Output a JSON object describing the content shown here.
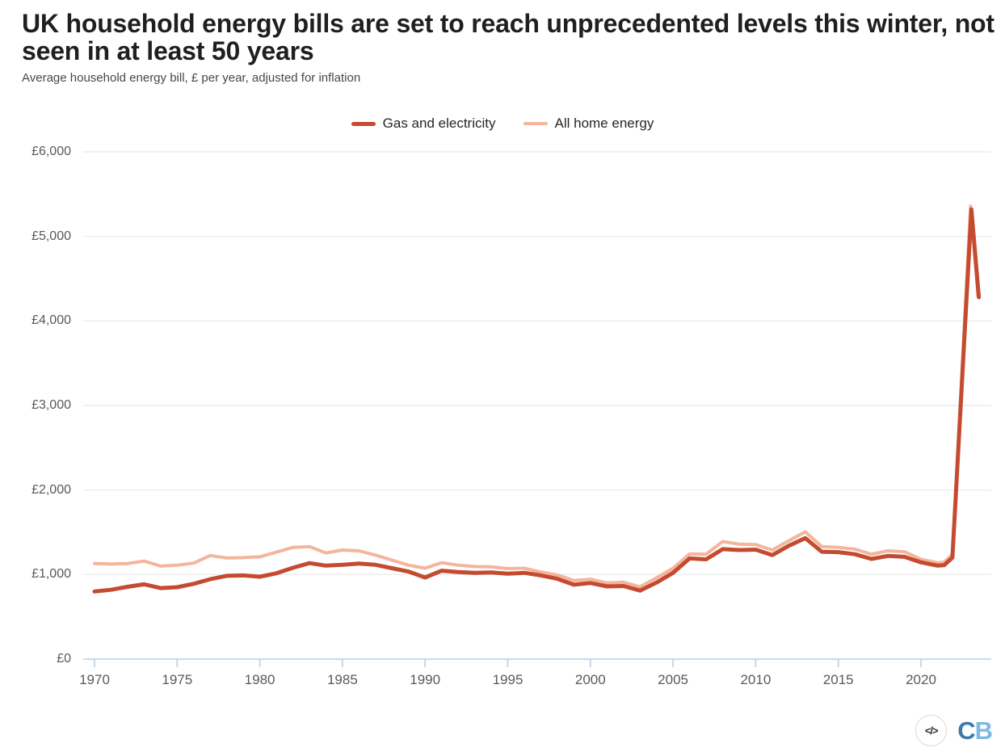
{
  "header": {
    "title": "UK household energy bills are set to reach unprecedented levels this winter, not seen in at least 50 years",
    "subtitle": "Average household energy bill, £ per year, adjusted for inflation"
  },
  "legend": [
    {
      "label": "Gas and electricity",
      "color": "#c44b30"
    },
    {
      "label": "All home energy",
      "color": "#f4b59c"
    }
  ],
  "chart_data": {
    "type": "line",
    "title": "UK household energy bills are set to reach unprecedented levels this winter, not seen in at least 50 years",
    "subtitle": "Average household energy bill, £ per year, adjusted for inflation",
    "xlabel": "",
    "ylabel": "Average household energy bill, £ per year, adjusted for inflation",
    "xlim": [
      1969.3,
      2024.3
    ],
    "ylim": [
      0,
      6000
    ],
    "grid": "horizontal",
    "legend_position": "top-center",
    "grid_color": "#ececec",
    "axis_color": "#b9cfe4",
    "y_ticks": [
      {
        "label": "£0",
        "value": 0
      },
      {
        "label": "£1,000",
        "value": 1000
      },
      {
        "label": "£2,000",
        "value": 2000
      },
      {
        "label": "£3,000",
        "value": 3000
      },
      {
        "label": "£4,000",
        "value": 4000
      },
      {
        "label": "£5,000",
        "value": 5000
      },
      {
        "label": "£6,000",
        "value": 6000
      }
    ],
    "x_ticks": [
      {
        "label": "1970",
        "value": 1970
      },
      {
        "label": "1975",
        "value": 1975
      },
      {
        "label": "1980",
        "value": 1980
      },
      {
        "label": "1985",
        "value": 1985
      },
      {
        "label": "1990",
        "value": 1990
      },
      {
        "label": "1995",
        "value": 1995
      },
      {
        "label": "2000",
        "value": 2000
      },
      {
        "label": "2005",
        "value": 2005
      },
      {
        "label": "2010",
        "value": 2010
      },
      {
        "label": "2015",
        "value": 2015
      },
      {
        "label": "2020",
        "value": 2020
      }
    ],
    "series": [
      {
        "name": "All home energy",
        "color": "#f4b59c",
        "stroke_width": 4,
        "points": [
          [
            1970,
            1130
          ],
          [
            1971,
            1125
          ],
          [
            1972,
            1130
          ],
          [
            1973,
            1160
          ],
          [
            1974,
            1100
          ],
          [
            1975,
            1110
          ],
          [
            1976,
            1135
          ],
          [
            1977,
            1225
          ],
          [
            1978,
            1195
          ],
          [
            1979,
            1200
          ],
          [
            1980,
            1210
          ],
          [
            1981,
            1265
          ],
          [
            1982,
            1320
          ],
          [
            1983,
            1330
          ],
          [
            1984,
            1255
          ],
          [
            1985,
            1290
          ],
          [
            1986,
            1280
          ],
          [
            1987,
            1230
          ],
          [
            1988,
            1170
          ],
          [
            1989,
            1110
          ],
          [
            1990,
            1075
          ],
          [
            1991,
            1140
          ],
          [
            1992,
            1110
          ],
          [
            1993,
            1095
          ],
          [
            1994,
            1090
          ],
          [
            1995,
            1070
          ],
          [
            1996,
            1075
          ],
          [
            1997,
            1030
          ],
          [
            1998,
            995
          ],
          [
            1999,
            930
          ],
          [
            2000,
            945
          ],
          [
            2001,
            900
          ],
          [
            2002,
            910
          ],
          [
            2003,
            855
          ],
          [
            2004,
            960
          ],
          [
            2005,
            1075
          ],
          [
            2006,
            1245
          ],
          [
            2007,
            1240
          ],
          [
            2008,
            1390
          ],
          [
            2009,
            1360
          ],
          [
            2010,
            1355
          ],
          [
            2011,
            1290
          ],
          [
            2012,
            1400
          ],
          [
            2013,
            1505
          ],
          [
            2014,
            1330
          ],
          [
            2015,
            1320
          ],
          [
            2016,
            1300
          ],
          [
            2017,
            1240
          ],
          [
            2018,
            1280
          ],
          [
            2019,
            1270
          ],
          [
            2020,
            1180
          ],
          [
            2021,
            1140
          ],
          [
            2021.4,
            1145
          ],
          [
            2021.9,
            1240
          ],
          [
            2023.0,
            5360
          ],
          [
            2023.45,
            4300
          ]
        ]
      },
      {
        "name": "Gas and electricity",
        "color": "#c44b30",
        "stroke_width": 5,
        "points": [
          [
            1970,
            800
          ],
          [
            1971,
            820
          ],
          [
            1972,
            855
          ],
          [
            1973,
            885
          ],
          [
            1974,
            840
          ],
          [
            1975,
            850
          ],
          [
            1976,
            890
          ],
          [
            1977,
            945
          ],
          [
            1978,
            985
          ],
          [
            1979,
            990
          ],
          [
            1980,
            975
          ],
          [
            1981,
            1015
          ],
          [
            1982,
            1080
          ],
          [
            1983,
            1135
          ],
          [
            1984,
            1105
          ],
          [
            1985,
            1115
          ],
          [
            1986,
            1130
          ],
          [
            1987,
            1115
          ],
          [
            1988,
            1075
          ],
          [
            1989,
            1035
          ],
          [
            1990,
            965
          ],
          [
            1991,
            1045
          ],
          [
            1992,
            1030
          ],
          [
            1993,
            1020
          ],
          [
            1994,
            1025
          ],
          [
            1995,
            1010
          ],
          [
            1996,
            1020
          ],
          [
            1997,
            990
          ],
          [
            1998,
            950
          ],
          [
            1999,
            880
          ],
          [
            2000,
            900
          ],
          [
            2001,
            860
          ],
          [
            2002,
            865
          ],
          [
            2003,
            810
          ],
          [
            2004,
            905
          ],
          [
            2005,
            1020
          ],
          [
            2006,
            1190
          ],
          [
            2007,
            1180
          ],
          [
            2008,
            1300
          ],
          [
            2009,
            1290
          ],
          [
            2010,
            1295
          ],
          [
            2011,
            1230
          ],
          [
            2012,
            1340
          ],
          [
            2013,
            1430
          ],
          [
            2014,
            1270
          ],
          [
            2015,
            1265
          ],
          [
            2016,
            1240
          ],
          [
            2017,
            1185
          ],
          [
            2018,
            1220
          ],
          [
            2019,
            1210
          ],
          [
            2020,
            1145
          ],
          [
            2021,
            1105
          ],
          [
            2021.4,
            1110
          ],
          [
            2021.9,
            1200
          ],
          [
            2023.05,
            5320
          ],
          [
            2023.5,
            4280
          ]
        ]
      }
    ]
  },
  "footer": {
    "embed_icon": "</>",
    "logo_c": "C",
    "logo_b": "B",
    "logo_c_color": "#3e7bab",
    "logo_b_color": "#7cb9e4"
  }
}
